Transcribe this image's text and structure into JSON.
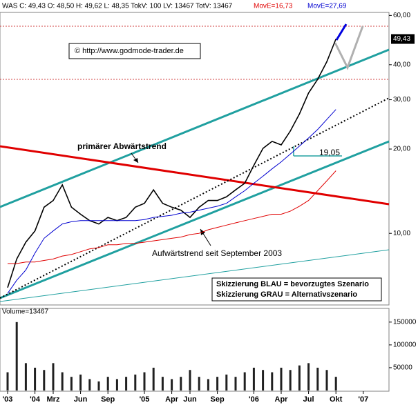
{
  "chart_data": {
    "type": "line",
    "title": "WAS C: 49,43 O: 48,50 H: 49,62 L: 48,35 TokV: 100 LV: 13467 TotV: 13467",
    "log_scale": true,
    "categories": [
      "'03",
      null,
      null,
      "'04",
      null,
      "Mrz",
      null,
      null,
      "Jun",
      null,
      null,
      "Sep",
      null,
      null,
      null,
      "'05",
      null,
      null,
      "Apr",
      null,
      "Jun",
      null,
      null,
      "Sep",
      null,
      null,
      null,
      "'06",
      null,
      null,
      "Apr",
      null,
      null,
      "Jul",
      null,
      null,
      "Okt",
      null,
      null,
      "'07",
      null,
      null,
      null
    ],
    "series": [
      {
        "color": "#000000",
        "values": [
          6.4,
          8.1,
          9.3,
          10.2,
          12.4,
          13.1,
          14.9,
          12.4,
          11.7,
          11.1,
          10.8,
          11.4,
          11.1,
          11.4,
          12.4,
          12.8,
          14.3,
          12.8,
          12.4,
          12.1,
          11.4,
          12.4,
          13.1,
          13.1,
          13.5,
          14.3,
          15.1,
          17.5,
          20.1,
          21.3,
          20.7,
          23.2,
          26.7,
          31.7,
          35.5,
          41,
          49.43,
          null,
          null,
          null,
          null,
          null,
          null
        ]
      },
      {
        "name": "MovE=16,73",
        "color": "#e00000",
        "values": [
          7.8,
          7.8,
          7.9,
          7.9,
          8.0,
          8.1,
          8.3,
          8.4,
          8.6,
          8.8,
          8.9,
          9.1,
          9.1,
          9.2,
          9.2,
          9.3,
          9.4,
          9.5,
          9.6,
          9.7,
          9.9,
          10.0,
          10.3,
          10.5,
          10.7,
          10.9,
          11.1,
          11.3,
          11.5,
          11.7,
          11.7,
          12.0,
          12.5,
          13.1,
          14.2,
          15.4,
          16.73,
          null,
          null,
          null,
          null,
          null,
          null
        ]
      },
      {
        "name": "MovE=27,69",
        "color": "#0000d0",
        "values": [
          6.1,
          6.8,
          7.4,
          8.5,
          9.6,
          10.2,
          10.8,
          11.0,
          11.1,
          11.1,
          11.1,
          11.1,
          11.1,
          11.1,
          11.1,
          11.2,
          11.4,
          11.5,
          11.6,
          11.8,
          11.9,
          12.1,
          12.3,
          12.5,
          12.8,
          13.5,
          14.2,
          15.1,
          16.0,
          17.0,
          18.0,
          19.2,
          20.5,
          21.9,
          23.5,
          25.5,
          27.69,
          null,
          null,
          null,
          null,
          null,
          null
        ]
      }
    ],
    "ylim": [
      5.55,
      61.5
    ],
    "yticks": [
      {
        "value": 10,
        "label": "10,00"
      },
      {
        "value": 20,
        "label": "20,00"
      },
      {
        "value": 30,
        "label": "30,00"
      },
      {
        "value": 40,
        "label": "40,00"
      },
      {
        "value": 60,
        "label": "60,00"
      }
    ],
    "last_value": {
      "value": 49.43,
      "label": "49,43"
    },
    "annotations": {
      "copyright": "© http://www.godmode-trader.de",
      "downtrend": "primärer Abwärtstrend",
      "uptrend": "Aufwärtstrend seit September 2003",
      "support": "19,05",
      "scenario_blue": "Skizzierung BLAU = bevorzugtes Szenario",
      "scenario_gray": "Skizzierung GRAU = Alternativszenario"
    },
    "volume": {
      "title": "Volume=13467",
      "color": "#202020",
      "values": [
        40000,
        150000,
        60000,
        50000,
        45000,
        60000,
        40000,
        30000,
        35000,
        25000,
        20000,
        30000,
        25000,
        30000,
        35000,
        40000,
        50000,
        30000,
        25000,
        30000,
        45000,
        30000,
        25000,
        30000,
        35000,
        30000,
        40000,
        50000,
        45000,
        40000,
        50000,
        45000,
        55000,
        60000,
        50000,
        45000,
        30000,
        null,
        null,
        null,
        null,
        null,
        null
      ],
      "ylim": [
        0,
        180000
      ],
      "yticks": [
        50000,
        100000,
        150000
      ]
    }
  }
}
